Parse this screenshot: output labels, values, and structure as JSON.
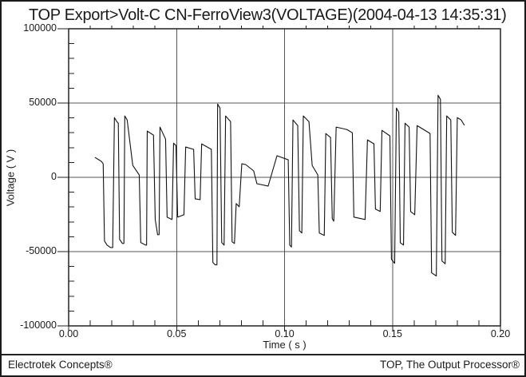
{
  "window": {
    "background": "#ffffff",
    "border_color": "#1a1a1a"
  },
  "title": "TOP Export>Volt-C CN-FerroView3(VOLTAGE)(2004-04-13 14:35:31)",
  "footer": {
    "left": "Electrotek Concepts®",
    "right": "TOP, The Output Processor®"
  },
  "chart_data": {
    "type": "line",
    "title": "TOP Export>Volt-C CN-FerroView3(VOLTAGE)(2004-04-13 14:35:31)",
    "xlabel": "Time ( s )",
    "ylabel": "Voltage ( V )",
    "xlim": [
      0,
      0.2
    ],
    "ylim": [
      -100000,
      100000
    ],
    "x_ticks": {
      "values": [
        0,
        0.05,
        0.1,
        0.15,
        0.2
      ],
      "labels": [
        "0.00",
        "0.05",
        "0.10",
        "0.15",
        "0.20"
      ],
      "minor_step": 0.01
    },
    "y_ticks": {
      "values": [
        100000,
        50000,
        0,
        -50000,
        -100000
      ],
      "labels": [
        "100000",
        "50000",
        "0",
        "-50000",
        "-100000"
      ],
      "minor_step": 10000
    },
    "gridlines": {
      "x": [
        0.05,
        0.1,
        0.15
      ],
      "y": [
        -50000,
        0,
        50000
      ]
    },
    "grid": true,
    "legend_position": "none",
    "line_color": "#111111",
    "grid_color": "#555555",
    "frame_color": "#222222",
    "series": [
      {
        "name": "Volt-C CN-FerroView3 (VOLTAGE)",
        "points": [
          [
            0.0122,
            13400
          ],
          [
            0.0152,
            10700
          ],
          [
            0.016,
            9100
          ],
          [
            0.0166,
            -42900
          ],
          [
            0.0178,
            -45600
          ],
          [
            0.0193,
            -47200
          ],
          [
            0.0204,
            -47300
          ],
          [
            0.0212,
            40200
          ],
          [
            0.0223,
            37500
          ],
          [
            0.023,
            36400
          ],
          [
            0.0236,
            -41800
          ],
          [
            0.0249,
            -44500
          ],
          [
            0.0256,
            -44500
          ],
          [
            0.026,
            41300
          ],
          [
            0.0271,
            38600
          ],
          [
            0.0297,
            8000
          ],
          [
            0.0327,
            1600
          ],
          [
            0.0334,
            -43900
          ],
          [
            0.0356,
            -45600
          ],
          [
            0.0361,
            -45600
          ],
          [
            0.0364,
            31100
          ],
          [
            0.0393,
            28400
          ],
          [
            0.0401,
            -28400
          ],
          [
            0.0412,
            -38600
          ],
          [
            0.0419,
            -38600
          ],
          [
            0.0423,
            33800
          ],
          [
            0.0449,
            25700
          ],
          [
            0.0456,
            -26800
          ],
          [
            0.0479,
            -28400
          ],
          [
            0.0486,
            23000
          ],
          [
            0.0497,
            21400
          ],
          [
            0.0505,
            -26800
          ],
          [
            0.0534,
            -25200
          ],
          [
            0.0542,
            20400
          ],
          [
            0.0579,
            18800
          ],
          [
            0.0586,
            -14500
          ],
          [
            0.0609,
            -15000
          ],
          [
            0.0616,
            22500
          ],
          [
            0.0661,
            18800
          ],
          [
            0.0668,
            -57300
          ],
          [
            0.0679,
            -58900
          ],
          [
            0.0687,
            -58900
          ],
          [
            0.069,
            49300
          ],
          [
            0.0701,
            46600
          ],
          [
            0.0709,
            -43900
          ],
          [
            0.072,
            -45600
          ],
          [
            0.0727,
            41300
          ],
          [
            0.075,
            37500
          ],
          [
            0.0757,
            -43400
          ],
          [
            0.0768,
            -44500
          ],
          [
            0.0776,
            -17700
          ],
          [
            0.079,
            -19800
          ],
          [
            0.0802,
            9100
          ],
          [
            0.082,
            8600
          ],
          [
            0.0857,
            4300
          ],
          [
            0.0872,
            -4300
          ],
          [
            0.0924,
            -5900
          ],
          [
            0.0965,
            14500
          ],
          [
            0.1017,
            11800
          ],
          [
            0.1024,
            -45600
          ],
          [
            0.1032,
            -46900
          ],
          [
            0.1039,
            38600
          ],
          [
            0.1061,
            34800
          ],
          [
            0.1069,
            -35900
          ],
          [
            0.108,
            -37500
          ],
          [
            0.1087,
            41300
          ],
          [
            0.1113,
            37500
          ],
          [
            0.1128,
            8000
          ],
          [
            0.1154,
            1600
          ],
          [
            0.1161,
            -37500
          ],
          [
            0.1184,
            -39100
          ],
          [
            0.1191,
            29500
          ],
          [
            0.1213,
            26800
          ],
          [
            0.1221,
            -27900
          ],
          [
            0.1228,
            -29500
          ],
          [
            0.1239,
            33800
          ],
          [
            0.1288,
            32200
          ],
          [
            0.1314,
            30000
          ],
          [
            0.1321,
            -26800
          ],
          [
            0.1373,
            -28400
          ],
          [
            0.1384,
            25200
          ],
          [
            0.1414,
            22500
          ],
          [
            0.1421,
            -21400
          ],
          [
            0.1443,
            -23000
          ],
          [
            0.1451,
            31600
          ],
          [
            0.1488,
            27900
          ],
          [
            0.1495,
            -55200
          ],
          [
            0.151,
            -57900
          ],
          [
            0.1518,
            46600
          ],
          [
            0.1529,
            43900
          ],
          [
            0.1536,
            -44000
          ],
          [
            0.1551,
            -45600
          ],
          [
            0.1558,
            36400
          ],
          [
            0.1577,
            33800
          ],
          [
            0.1584,
            -23000
          ],
          [
            0.1603,
            -25200
          ],
          [
            0.1614,
            34800
          ],
          [
            0.1674,
            29500
          ],
          [
            0.1681,
            -64300
          ],
          [
            0.1703,
            -66400
          ],
          [
            0.1711,
            55200
          ],
          [
            0.1722,
            52500
          ],
          [
            0.1729,
            -56300
          ],
          [
            0.1744,
            -58200
          ],
          [
            0.1751,
            41300
          ],
          [
            0.177,
            38600
          ],
          [
            0.1777,
            -37000
          ],
          [
            0.1792,
            -39100
          ],
          [
            0.18,
            40200
          ],
          [
            0.1818,
            38600
          ],
          [
            0.1833,
            35000
          ]
        ]
      }
    ]
  }
}
